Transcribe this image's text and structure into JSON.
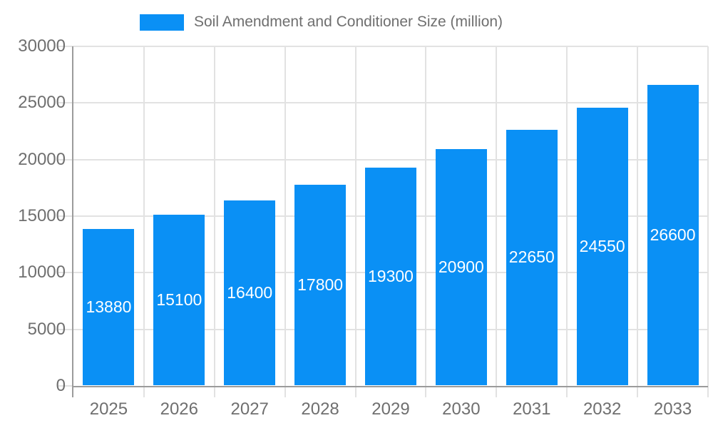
{
  "legend": {
    "swatch_icon": "series-color-swatch"
  },
  "colors": {
    "bar": "#0a90f5",
    "grid": "#e2e2e2",
    "axis": "#9b9b9b",
    "tick_label": "#6f6f6f",
    "bar_label": "#ffffff"
  },
  "chart_data": {
    "type": "bar",
    "title": "Soil Amendment and Conditioner Size (million)",
    "categories": [
      "2025",
      "2026",
      "2027",
      "2028",
      "2029",
      "2030",
      "2031",
      "2032",
      "2033"
    ],
    "values": [
      13880,
      15100,
      16400,
      17800,
      19300,
      20900,
      22650,
      24550,
      26600
    ],
    "series_name": "Soil Amendment and Conditioner Size (million)",
    "xlabel": "",
    "ylabel": "",
    "ylim": [
      0,
      30000
    ],
    "ytick_step": 5000,
    "yticks": [
      0,
      5000,
      10000,
      15000,
      20000,
      25000,
      30000
    ],
    "grid": true,
    "legend_position": "top",
    "value_labels": "inside-center"
  }
}
